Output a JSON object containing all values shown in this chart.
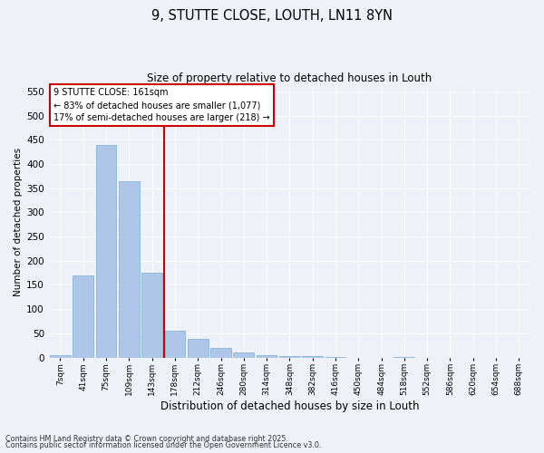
{
  "title1": "9, STUTTE CLOSE, LOUTH, LN11 8YN",
  "title2": "Size of property relative to detached houses in Louth",
  "xlabel": "Distribution of detached houses by size in Louth",
  "ylabel": "Number of detached properties",
  "bins": [
    "7sqm",
    "41sqm",
    "75sqm",
    "109sqm",
    "143sqm",
    "178sqm",
    "212sqm",
    "246sqm",
    "280sqm",
    "314sqm",
    "348sqm",
    "382sqm",
    "416sqm",
    "450sqm",
    "484sqm",
    "518sqm",
    "552sqm",
    "586sqm",
    "620sqm",
    "654sqm",
    "688sqm"
  ],
  "values": [
    5,
    170,
    440,
    365,
    175,
    55,
    38,
    20,
    11,
    5,
    3,
    2,
    1,
    0,
    0,
    1,
    0,
    0,
    0,
    0,
    0
  ],
  "bar_color": "#aec6e8",
  "bar_edge_color": "#7aafd4",
  "ylim": [
    0,
    560
  ],
  "yticks": [
    0,
    50,
    100,
    150,
    200,
    250,
    300,
    350,
    400,
    450,
    500,
    550
  ],
  "vline_color": "#cc0000",
  "annotation_line1": "9 STUTTE CLOSE: 161sqm",
  "annotation_line2": "← 83% of detached houses are smaller (1,077)",
  "annotation_line3": "17% of semi-detached houses are larger (218) →",
  "annotation_box_color": "#ffffff",
  "annotation_box_edgecolor": "#cc0000",
  "footer1": "Contains HM Land Registry data © Crown copyright and database right 2025.",
  "footer2": "Contains public sector information licensed under the Open Government Licence v3.0.",
  "bg_color": "#eef2f8",
  "plot_bg_color": "#eef2f8",
  "grid_color": "#ffffff"
}
